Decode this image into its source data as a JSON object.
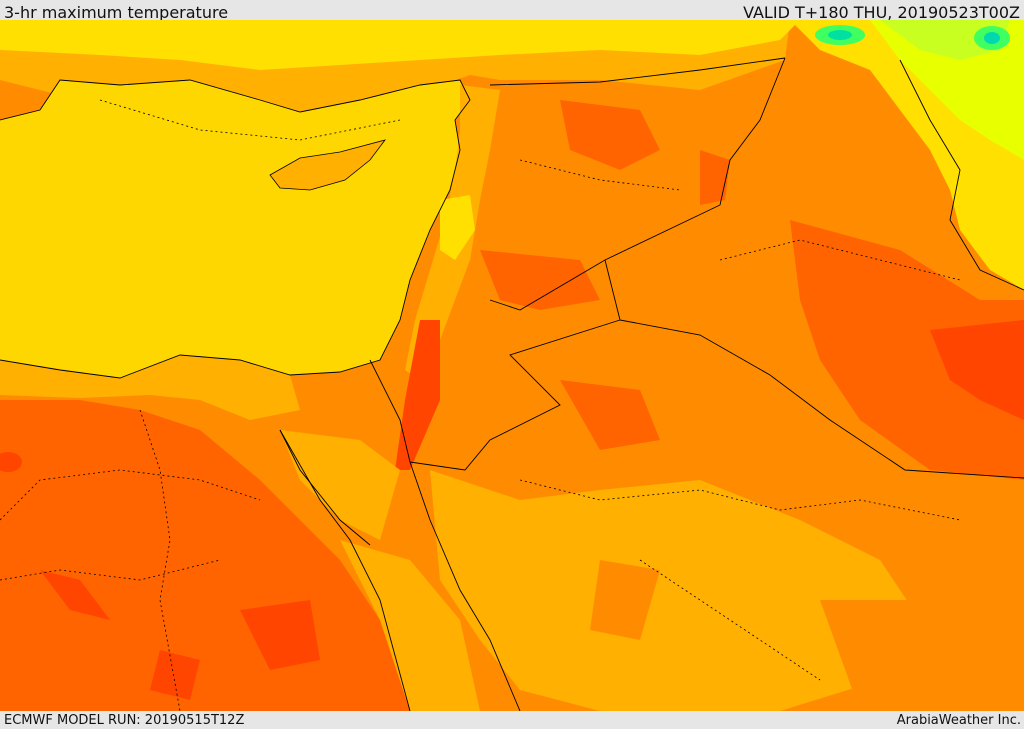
{
  "header": {
    "title": "3-hr maximum temperature",
    "valid_time": "VALID T+180 THU, 20190523T00Z"
  },
  "footer": {
    "model_run": "ECMWF MODEL RUN: 20190515T12Z",
    "credit": "ArabiaWeather Inc."
  },
  "map": {
    "variable": "3-hr maximum temperature",
    "region": "Eastern Mediterranean / Middle East",
    "colors": {
      "mediterranean_sea": "#ffd700",
      "yellow": "#ffe000",
      "light_orange": "#ffb000",
      "orange": "#ff8c00",
      "dark_orange": "#ff6400",
      "red_orange": "#ff4500",
      "yellow_green": "#e8ff00",
      "green": "#40ff40",
      "teal": "#00e0a0",
      "border_line": "#000000"
    }
  }
}
